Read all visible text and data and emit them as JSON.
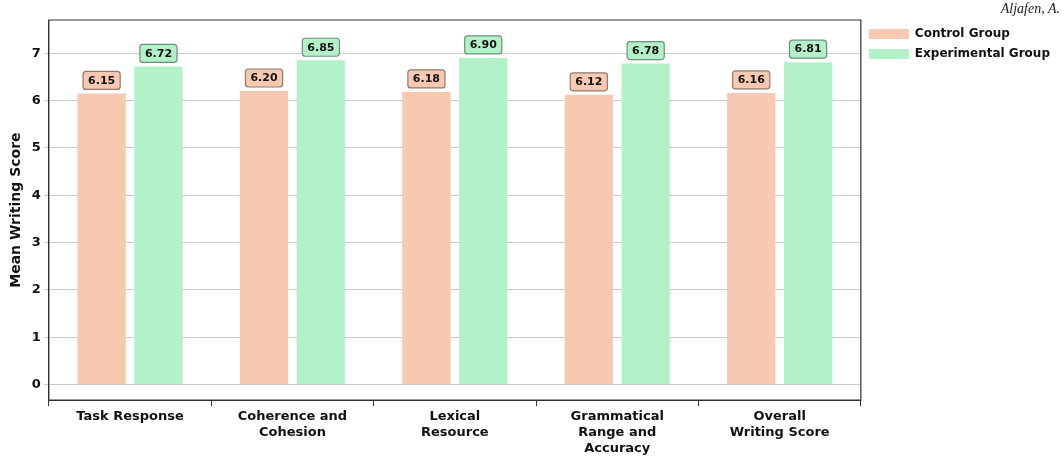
{
  "chart_data": {
    "type": "bar",
    "ylabel": "Mean Writing Score",
    "categories": [
      "Task Response",
      "Coherence and Cohesion",
      "Lexical Resource",
      "Grammatical Range and Accuracy",
      "Overall Writing Score"
    ],
    "series": [
      {
        "name": "Control Group",
        "color": "#f7c9b1",
        "values": [
          6.15,
          6.2,
          6.18,
          6.12,
          6.16
        ],
        "value_labels": [
          "6.15",
          "6.20",
          "6.18",
          "6.12",
          "6.16"
        ]
      },
      {
        "name": "Experimental Group",
        "color": "#b3f2c8",
        "values": [
          6.72,
          6.85,
          6.9,
          6.78,
          6.81
        ],
        "value_labels": [
          "6.72",
          "6.85",
          "6.90",
          "6.78",
          "6.81"
        ]
      }
    ],
    "ylim": [
      -0.33,
      7.7
    ],
    "yticks": [
      0,
      1,
      2,
      3,
      4,
      5,
      6,
      7
    ],
    "grid": "y",
    "legend": "top right",
    "annotations": [
      "Aljafen, A."
    ]
  }
}
